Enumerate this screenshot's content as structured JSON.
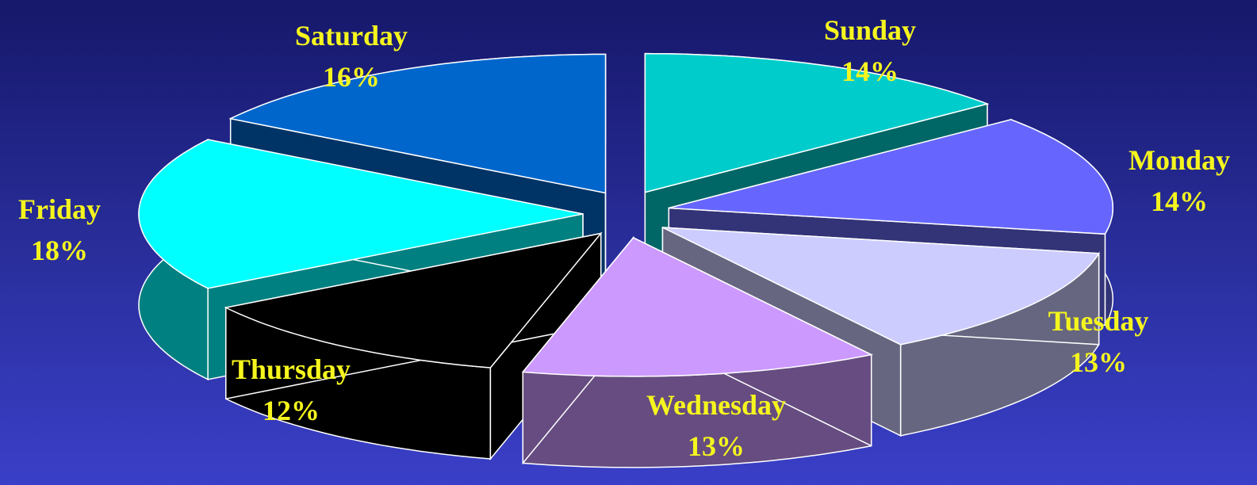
{
  "chart_data": {
    "type": "pie",
    "title": "",
    "style": "3d-exploded",
    "label_color": "#f5f51e",
    "background_colors": [
      "#16186a",
      "#3a3fc8"
    ],
    "slices": [
      {
        "label": "Sunday",
        "value": 14,
        "value_label": "14%",
        "top_color": "#00cccc",
        "side_color": "#006666"
      },
      {
        "label": "Monday",
        "value": 14,
        "value_label": "14%",
        "top_color": "#6666ff",
        "side_color": "#333378"
      },
      {
        "label": "Tuesday",
        "value": 13,
        "value_label": "13%",
        "top_color": "#ccccff",
        "side_color": "#666680"
      },
      {
        "label": "Wednesday",
        "value": 13,
        "value_label": "13%",
        "top_color": "#cc99ff",
        "side_color": "#664c80"
      },
      {
        "label": "Thursday",
        "value": 12,
        "value_label": "12%",
        "top_color": "#000000",
        "side_color": "#000000"
      },
      {
        "label": "Friday",
        "value": 18,
        "value_label": "18%",
        "top_color": "#00ffff",
        "side_color": "#008080"
      },
      {
        "label": "Saturday",
        "value": 16,
        "value_label": "16%",
        "top_color": "#0066cc",
        "side_color": "#003366"
      }
    ]
  }
}
